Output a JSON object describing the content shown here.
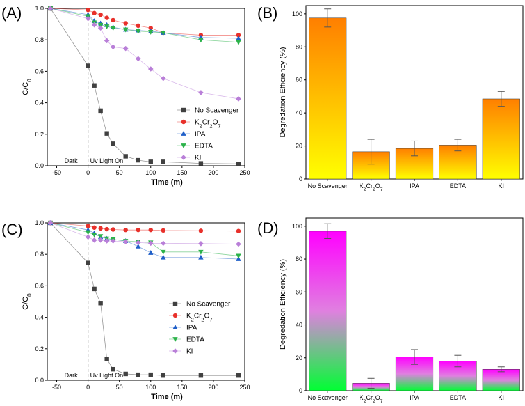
{
  "chart_data": [
    {
      "panel_label": "(A)",
      "type": "line",
      "xlabel": "Time (m)",
      "ylabel": "C/C0",
      "xlim": [
        -65,
        250
      ],
      "ylim": [
        0,
        1.0
      ],
      "xticks": [
        -50,
        0,
        50,
        100,
        150,
        200,
        250
      ],
      "yticks": [
        0.0,
        0.2,
        0.4,
        0.6,
        0.8,
        1.0
      ],
      "annotations": {
        "dark": "Dark",
        "light": "Uv Light On"
      },
      "series": [
        {
          "name": "No Scavenger",
          "color": "#404040",
          "marker": "square",
          "x": [
            -60,
            0,
            10,
            20,
            30,
            40,
            60,
            80,
            100,
            120,
            180,
            240
          ],
          "y": [
            1.0,
            0.635,
            0.51,
            0.35,
            0.205,
            0.14,
            0.06,
            0.035,
            0.025,
            0.025,
            0.015,
            0.012
          ]
        },
        {
          "name": "K2Cr2O7",
          "color": "#e8302a",
          "marker": "circle",
          "x": [
            -60,
            0,
            10,
            20,
            30,
            40,
            60,
            80,
            100,
            120,
            180,
            240
          ],
          "y": [
            1.0,
            0.99,
            0.97,
            0.96,
            0.94,
            0.925,
            0.905,
            0.89,
            0.875,
            0.845,
            0.83,
            0.83
          ]
        },
        {
          "name": "IPA",
          "color": "#1f5fc8",
          "marker": "triangle-up",
          "x": [
            -60,
            0,
            10,
            20,
            30,
            40,
            60,
            80,
            100,
            120,
            180,
            240
          ],
          "y": [
            1.0,
            0.96,
            0.92,
            0.905,
            0.895,
            0.88,
            0.865,
            0.86,
            0.855,
            0.845,
            0.815,
            0.81
          ]
        },
        {
          "name": "EDTA",
          "color": "#2bb24a",
          "marker": "triangle-down",
          "x": [
            -60,
            0,
            10,
            20,
            30,
            40,
            60,
            80,
            100,
            120,
            180,
            240
          ],
          "y": [
            1.0,
            0.95,
            0.91,
            0.895,
            0.885,
            0.875,
            0.865,
            0.855,
            0.85,
            0.845,
            0.8,
            0.785
          ]
        },
        {
          "name": "KI",
          "color": "#b97fd8",
          "marker": "diamond",
          "x": [
            -60,
            0,
            10,
            20,
            30,
            40,
            60,
            80,
            100,
            120,
            180,
            240
          ],
          "y": [
            1.0,
            0.935,
            0.895,
            0.875,
            0.795,
            0.755,
            0.745,
            0.68,
            0.615,
            0.555,
            0.465,
            0.425
          ]
        }
      ]
    },
    {
      "panel_label": "(B)",
      "type": "bar",
      "ylabel": "Degredation Efficiency (%)",
      "ylim": [
        0,
        105
      ],
      "yticks": [
        0,
        20,
        40,
        60,
        80,
        100
      ],
      "categories": [
        "No Scavenger",
        "K2Cr2O7",
        "IPA",
        "EDTA",
        "KI"
      ],
      "values": [
        97.5,
        16.5,
        18.5,
        20.5,
        48.5
      ],
      "errors": [
        5.5,
        7.5,
        4.5,
        3.5,
        4.5
      ],
      "gradient": {
        "top": "#ff7f00",
        "bottom": "#ffff00"
      }
    },
    {
      "panel_label": "(C)",
      "type": "line",
      "xlabel": "Time (m)",
      "ylabel": "C/C0",
      "xlim": [
        -65,
        250
      ],
      "ylim": [
        0,
        1.0
      ],
      "xticks": [
        -50,
        0,
        50,
        100,
        150,
        200,
        250
      ],
      "yticks": [
        0.0,
        0.2,
        0.4,
        0.6,
        0.8,
        1.0
      ],
      "annotations": {
        "dark": "Dark",
        "light": "Uv Light On"
      },
      "series": [
        {
          "name": "No Scavenger",
          "color": "#404040",
          "marker": "square",
          "x": [
            -60,
            0,
            10,
            20,
            30,
            40,
            60,
            80,
            100,
            120,
            180,
            240
          ],
          "y": [
            1.0,
            0.745,
            0.58,
            0.49,
            0.135,
            0.07,
            0.04,
            0.035,
            0.035,
            0.03,
            0.03,
            0.03
          ]
        },
        {
          "name": "K2Cr2O7",
          "color": "#e8302a",
          "marker": "circle",
          "x": [
            -60,
            0,
            10,
            20,
            30,
            40,
            60,
            80,
            100,
            120,
            180,
            240
          ],
          "y": [
            1.0,
            0.98,
            0.97,
            0.965,
            0.96,
            0.958,
            0.955,
            0.955,
            0.955,
            0.952,
            0.95,
            0.948
          ]
        },
        {
          "name": "IPA",
          "color": "#1f5fc8",
          "marker": "triangle-up",
          "x": [
            -60,
            0,
            10,
            20,
            30,
            40,
            60,
            80,
            100,
            120,
            180,
            240
          ],
          "y": [
            1.0,
            0.955,
            0.935,
            0.91,
            0.9,
            0.895,
            0.885,
            0.85,
            0.81,
            0.78,
            0.78,
            0.77
          ]
        },
        {
          "name": "EDTA",
          "color": "#2bb24a",
          "marker": "triangle-down",
          "x": [
            -60,
            0,
            10,
            20,
            30,
            40,
            60,
            80,
            100,
            120,
            180,
            240
          ],
          "y": [
            1.0,
            0.94,
            0.925,
            0.915,
            0.9,
            0.895,
            0.885,
            0.88,
            0.875,
            0.815,
            0.815,
            0.79
          ]
        },
        {
          "name": "KI",
          "color": "#b97fd8",
          "marker": "diamond",
          "x": [
            -60,
            0,
            10,
            20,
            30,
            40,
            60,
            80,
            100,
            120,
            180,
            240
          ],
          "y": [
            1.0,
            0.91,
            0.89,
            0.89,
            0.885,
            0.885,
            0.88,
            0.875,
            0.87,
            0.87,
            0.868,
            0.865
          ]
        }
      ]
    },
    {
      "panel_label": "(D)",
      "type": "bar",
      "ylabel": "Degredation Efficiency (%)",
      "ylim": [
        0,
        105
      ],
      "yticks": [
        0,
        20,
        40,
        60,
        80,
        100
      ],
      "categories": [
        "No Scavenger",
        "K2Cr2O7",
        "IPA",
        "EDTA",
        "KI"
      ],
      "values": [
        97,
        4.5,
        20.5,
        18,
        13
      ],
      "errors": [
        4.5,
        3,
        4.5,
        3.5,
        1.5
      ],
      "gradient": {
        "top": "#ff00ff",
        "bottom": "#00ff33"
      }
    }
  ]
}
